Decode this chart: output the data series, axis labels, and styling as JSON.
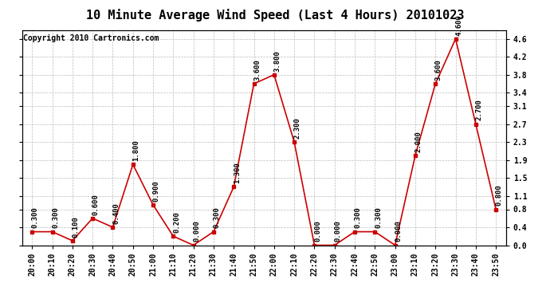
{
  "title": "10 Minute Average Wind Speed (Last 4 Hours) 20101023",
  "copyright": "Copyright 2010 Cartronics.com",
  "x_labels": [
    "20:00",
    "20:10",
    "20:20",
    "20:30",
    "20:40",
    "20:50",
    "21:00",
    "21:10",
    "21:20",
    "21:30",
    "21:40",
    "21:50",
    "22:00",
    "22:10",
    "22:20",
    "22:30",
    "22:40",
    "22:50",
    "23:00",
    "23:10",
    "23:20",
    "23:30",
    "23:40",
    "23:50"
  ],
  "y_values": [
    0.3,
    0.3,
    0.1,
    0.6,
    0.4,
    1.8,
    0.9,
    0.2,
    0.0,
    0.3,
    1.3,
    3.6,
    3.8,
    2.3,
    0.0,
    0.0,
    0.3,
    0.3,
    0.0,
    2.0,
    3.6,
    4.6,
    2.7,
    0.8
  ],
  "line_color": "#cc0000",
  "marker_color": "#cc0000",
  "marker_size": 3,
  "ylim": [
    0.0,
    4.8
  ],
  "ytick_vals": [
    0.0,
    0.4,
    0.8,
    1.1,
    1.5,
    1.9,
    2.3,
    2.7,
    3.1,
    3.4,
    3.8,
    4.2,
    4.6
  ],
  "grid_color": "#bbbbbb",
  "background_color": "#ffffff",
  "title_fontsize": 11,
  "label_fontsize": 7,
  "annotation_fontsize": 6.5,
  "copyright_fontsize": 7
}
